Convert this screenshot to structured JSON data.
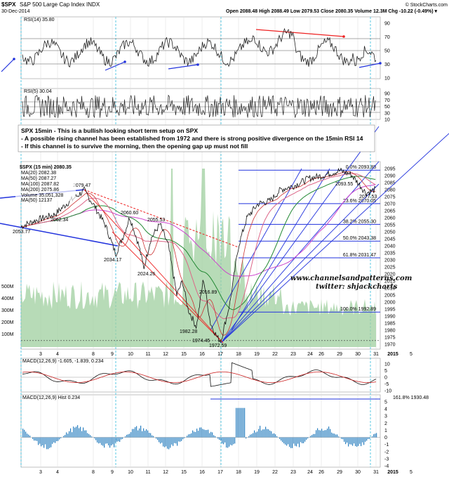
{
  "header": {
    "symbol": "$SPX",
    "name": "S&P 500 Large Cap Index",
    "exchange": "INDX",
    "date": "30-Dec-2014",
    "quote": "Open 2088.48   High 2088.49   Low 2079.53   Close 2080.35   Volume 12.3M   Chg -10.22 (-0.49%) ▾",
    "credit": "© StockCharts.com"
  },
  "rsi14": {
    "label": "RSI(14) 35.80",
    "ticks": [
      "90",
      "70",
      "50",
      "30",
      "10"
    ]
  },
  "rsi5": {
    "label": "RSI(5) 30.04",
    "ticks": [
      "90",
      "70",
      "50",
      "30",
      "10"
    ]
  },
  "annotation": {
    "title": "SPX 15min - This is a bullish looking short term setup on SPX",
    "line1": "- A possible rising channel has been established from 1972 and there is strong positive divergence on the 15min RSI 14",
    "line2": "- If this channel is to survive the morning, then the opening gap up must not fill"
  },
  "legend": {
    "main": "$SPX (15 min) 2080.35",
    "ma20": "MA(20) 2082.38",
    "ma50": "MA(50) 2087.27",
    "ma100": "MA(100) 2087.82",
    "ma200": "MA(200) 2075.86",
    "volume": "Volume 35,051,328",
    "extra": "MA(50) 12137"
  },
  "watermark": {
    "site": "www.channelsandpatterns.com",
    "twitter": "twitter: shjackcharts"
  },
  "fib_labels": [
    "0.0% 2093.88",
    "23.6% 2070.05",
    "38.2% 2055.30",
    "50.0% 2043.38",
    "61.8% 2031.47",
    "100.0% 1992.89"
  ],
  "price_annotations": [
    "2053.77",
    "2062.34",
    "2079.47",
    "2060.60",
    "2034.17",
    "2024.26",
    "2055.53",
    "2016.89",
    "1982.28",
    "1974.45",
    "1972.59",
    "2093.55",
    "2077.53"
  ],
  "price_axis": [
    "2095",
    "2090",
    "2085",
    "2080",
    "2075",
    "2070",
    "2065",
    "2060",
    "2055",
    "2050",
    "2045",
    "2040",
    "2035",
    "2030",
    "2025",
    "2020",
    "2015",
    "2010",
    "2005",
    "2000",
    "1995",
    "1990",
    "1985",
    "1980",
    "1975",
    "1970"
  ],
  "volume_axis": [
    "500M",
    "400M",
    "300M",
    "200M",
    "100M"
  ],
  "macd": {
    "label": "MACD(12,26,9) -1.605, -1.839, 0.234",
    "ticks": [
      "10",
      "5",
      "0",
      "-5",
      "-10"
    ]
  },
  "macd_hist": {
    "label": "MACD(12,26,9) Hist 0.234",
    "fib": "161.8% 1930.48",
    "ticks": [
      "5",
      "4",
      "3",
      "2",
      "1",
      "0",
      "-1",
      "-2",
      "-3",
      "-4"
    ]
  },
  "date_axis": [
    "3",
    "4",
    "8",
    "9",
    "10",
    "11",
    "12",
    "15",
    "16",
    "17",
    "18",
    "19",
    "22",
    "23",
    "24",
    "26",
    "29",
    "30",
    "31",
    "2015",
    "5"
  ],
  "colors": {
    "price": "#111111",
    "volume": "#9fcf9f",
    "channel": "#2233dd",
    "ma20": "#cc3333",
    "ma50": "#dd6688",
    "ma100": "#228833",
    "ma200": "#cc44cc",
    "red_trend": "#ee2222",
    "hist": "#2a7fc0"
  },
  "chart_data": {
    "type": "line",
    "title": "$SPX (15 min) 2080.35",
    "categories": [
      "3",
      "4",
      "8",
      "9",
      "10",
      "11",
      "12",
      "15",
      "16",
      "17",
      "18",
      "19",
      "22",
      "23",
      "24",
      "26",
      "29",
      "30",
      "31"
    ],
    "series": [
      {
        "name": "$SPX (15 min) 2080.35",
        "values": [
          2053.77,
          2062.34,
          2079.47,
          2034.17,
          2060.6,
          2024.26,
          2055.53,
          2005,
          1982.28,
          1972.59,
          2045,
          2070,
          2080,
          2085,
          2090,
          2088,
          2093.55,
          2077.53,
          2080.35
        ]
      }
    ],
    "ylim": [
      1968,
      2097
    ],
    "fib_levels": [
      2093.88,
      2070.05,
      2055.3,
      2043.38,
      2031.47,
      1992.89
    ],
    "grid": true
  }
}
